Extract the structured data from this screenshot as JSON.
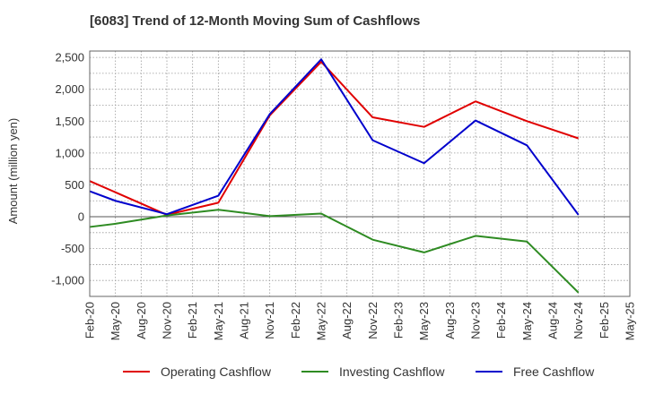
{
  "chart_data": {
    "type": "line",
    "title": "[6083]  Trend of 12-Month Moving Sum of Cashflows",
    "xlabel": "",
    "ylabel": "Amount (million yen)",
    "ylim": [
      -1250,
      2600
    ],
    "yticks": [
      -1000,
      -500,
      0,
      500,
      1000,
      1500,
      2000,
      2500
    ],
    "ytick_labels": [
      "-1,000",
      "-500",
      "0",
      "500",
      "1,000",
      "1,500",
      "2,000",
      "2,500"
    ],
    "x": [
      "Feb-20",
      "May-20",
      "Aug-20",
      "Nov-20",
      "Feb-21",
      "May-21",
      "Aug-21",
      "Nov-21",
      "Feb-22",
      "May-22",
      "Aug-22",
      "Nov-22",
      "Feb-23",
      "May-23",
      "Aug-23",
      "Nov-23",
      "Feb-24",
      "May-24",
      "Aug-24",
      "Nov-24",
      "Feb-25",
      "May-25"
    ],
    "grid": true,
    "legend_position": "bottom",
    "series": [
      {
        "name": "Operating Cashflow",
        "color": "#e00000",
        "points": [
          {
            "x": "Feb-20",
            "y": 560
          },
          {
            "x": "Nov-20",
            "y": 30
          },
          {
            "x": "May-21",
            "y": 220
          },
          {
            "x": "Nov-21",
            "y": 1590
          },
          {
            "x": "May-22",
            "y": 2430
          },
          {
            "x": "Nov-22",
            "y": 1560
          },
          {
            "x": "May-23",
            "y": 1410
          },
          {
            "x": "Nov-23",
            "y": 1810
          },
          {
            "x": "May-24",
            "y": 1500
          },
          {
            "x": "Nov-24",
            "y": 1230
          }
        ]
      },
      {
        "name": "Investing Cashflow",
        "color": "#2e8b22",
        "points": [
          {
            "x": "Feb-20",
            "y": -160
          },
          {
            "x": "May-20",
            "y": -110
          },
          {
            "x": "Nov-20",
            "y": 20
          },
          {
            "x": "May-21",
            "y": 110
          },
          {
            "x": "Nov-21",
            "y": 10
          },
          {
            "x": "May-22",
            "y": 50
          },
          {
            "x": "Nov-22",
            "y": -360
          },
          {
            "x": "May-23",
            "y": -560
          },
          {
            "x": "Nov-23",
            "y": -300
          },
          {
            "x": "May-24",
            "y": -390
          },
          {
            "x": "Nov-24",
            "y": -1190
          }
        ]
      },
      {
        "name": "Free Cashflow",
        "color": "#0000cc",
        "points": [
          {
            "x": "Feb-20",
            "y": 400
          },
          {
            "x": "May-20",
            "y": 250
          },
          {
            "x": "Nov-20",
            "y": 40
          },
          {
            "x": "May-21",
            "y": 330
          },
          {
            "x": "Nov-21",
            "y": 1610
          },
          {
            "x": "May-22",
            "y": 2470
          },
          {
            "x": "Nov-22",
            "y": 1200
          },
          {
            "x": "May-23",
            "y": 840
          },
          {
            "x": "Nov-23",
            "y": 1510
          },
          {
            "x": "May-24",
            "y": 1120
          },
          {
            "x": "Nov-24",
            "y": 30
          }
        ]
      }
    ]
  }
}
